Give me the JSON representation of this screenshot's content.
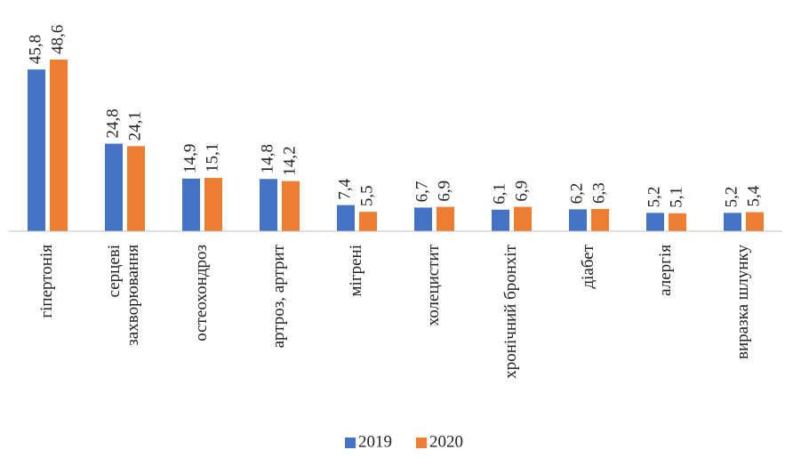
{
  "chart_data": {
    "type": "bar",
    "categories": [
      "гіпертонія",
      [
        "серцеві",
        "захворювання"
      ],
      "остеохондроз",
      "артроз, артрит",
      "мігрені",
      "холецистит",
      "хронічний бронхіт",
      "діабет",
      "алергія",
      "виразка шлунку"
    ],
    "series": [
      {
        "name": "2019",
        "color": "#4472c4",
        "values": [
          45.8,
          24.8,
          14.9,
          14.8,
          7.4,
          6.7,
          6.1,
          6.2,
          5.2,
          5.2
        ],
        "value_labels": [
          "45,8",
          "24,8",
          "14,9",
          "14,8",
          "7,4",
          "6,7",
          "6,1",
          "6,2",
          "5,2",
          "5,2"
        ]
      },
      {
        "name": "2020",
        "color": "#ed7d31",
        "values": [
          48.6,
          24.1,
          15.1,
          14.2,
          5.5,
          6.9,
          6.9,
          6.3,
          5.1,
          5.4
        ],
        "value_labels": [
          "48,6",
          "24,1",
          "15,1",
          "14,2",
          "5,5",
          "6,9",
          "6,9",
          "6,3",
          "5,1",
          "5,4"
        ]
      }
    ],
    "legend": "bottom"
  }
}
